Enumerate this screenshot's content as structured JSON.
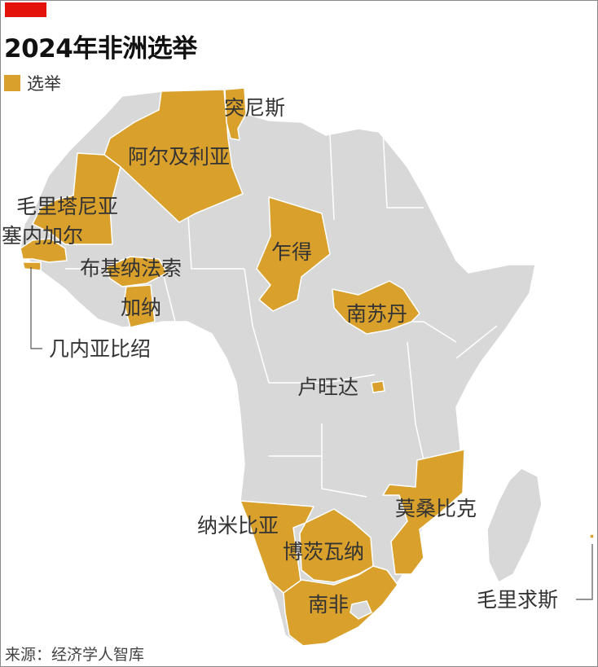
{
  "title": "2024年非洲选举",
  "legend": {
    "label": "选举"
  },
  "source": "来源：经济学人智库",
  "colors": {
    "brand_red": "#e3120b",
    "election": "#d9a02c",
    "land": "#d8d8d8",
    "border": "#ffffff",
    "text": "#333333"
  },
  "countries": {
    "tunisia": "突尼斯",
    "algeria": "阿尔及利亚",
    "mauritania": "毛里塔尼亚",
    "senegal": "塞内加尔",
    "burkina_faso": "布基纳法索",
    "ghana": "加纳",
    "guinea_bissau": "几内亚比绍",
    "chad": "乍得",
    "south_sudan": "南苏丹",
    "rwanda": "卢旺达",
    "mozambique": "莫桑比克",
    "namibia": "纳米比亚",
    "botswana": "博茨瓦纳",
    "south_africa": "南非",
    "mauritius": "毛里求斯"
  }
}
